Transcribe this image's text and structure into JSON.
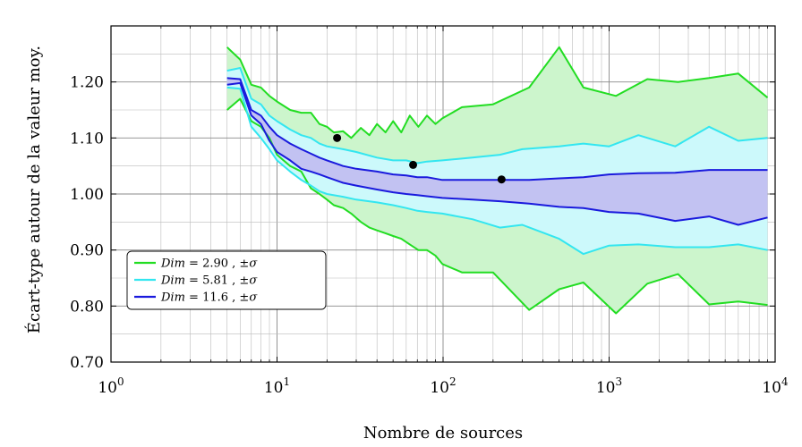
{
  "chart_data": {
    "type": "line",
    "title": "",
    "xlabel": "Nombre de sources",
    "ylabel": "Écart-type autour de la valeur moy.",
    "xscale": "log",
    "xlim": [
      1,
      10000
    ],
    "ylim": [
      0.7,
      1.3
    ],
    "grid": true,
    "legend_position": "bottom-left",
    "x_ticks": [
      1,
      10,
      100,
      1000,
      10000
    ],
    "x_tick_labels": [
      {
        "base": "10",
        "exp": "0"
      },
      {
        "base": "10",
        "exp": "1"
      },
      {
        "base": "10",
        "exp": "2"
      },
      {
        "base": "10",
        "exp": "3"
      },
      {
        "base": "10",
        "exp": "4"
      }
    ],
    "y_ticks": [
      0.7,
      0.8,
      0.9,
      1.0,
      1.1,
      1.2
    ],
    "y_tick_labels": [
      "0.70",
      "0.80",
      "0.90",
      "1.00",
      "1.10",
      "1.20"
    ],
    "series": [
      {
        "name": "Dim = 2.90 , ±σ",
        "legend": {
          "var": "Dim",
          "eq": " = 2.90 , ±",
          "sym": "σ"
        },
        "color": "#22dd22",
        "fill": "#ccf5cc",
        "x": [
          5,
          6,
          7,
          8,
          9,
          10,
          12,
          14,
          16,
          18,
          20,
          22,
          25,
          28,
          32,
          36,
          40,
          45,
          50,
          56,
          63,
          71,
          80,
          90,
          99,
          130,
          200,
          330,
          500,
          700,
          1100,
          1700,
          2600,
          4000,
          6000,
          9000
        ],
        "upper": [
          1.262,
          1.24,
          1.195,
          1.19,
          1.175,
          1.165,
          1.15,
          1.145,
          1.145,
          1.125,
          1.12,
          1.11,
          1.112,
          1.1,
          1.118,
          1.105,
          1.125,
          1.11,
          1.13,
          1.11,
          1.14,
          1.12,
          1.14,
          1.125,
          1.135,
          1.155,
          1.16,
          1.19,
          1.262,
          1.19,
          1.175,
          1.205,
          1.2,
          1.207,
          1.215,
          1.172
        ],
        "lower": [
          1.15,
          1.17,
          1.13,
          1.12,
          1.1,
          1.07,
          1.05,
          1.04,
          1.01,
          1.0,
          0.99,
          0.98,
          0.975,
          0.965,
          0.95,
          0.94,
          0.935,
          0.93,
          0.925,
          0.92,
          0.91,
          0.9,
          0.9,
          0.89,
          0.875,
          0.86,
          0.86,
          0.793,
          0.83,
          0.842,
          0.787,
          0.84,
          0.857,
          0.803,
          0.808,
          0.802
        ],
        "marker": {
          "x": 23,
          "y": 1.1
        }
      },
      {
        "name": "Dim = 5.81 , ±σ",
        "legend": {
          "var": "Dim",
          "eq": " = 5.81 , ±",
          "sym": "σ"
        },
        "color": "#33e6f0",
        "fill": "#ccf9fb",
        "x": [
          5,
          6,
          7,
          8,
          9,
          10,
          12,
          14,
          16,
          18,
          20,
          25,
          30,
          40,
          50,
          60,
          70,
          80,
          99,
          150,
          220,
          300,
          500,
          700,
          1000,
          1500,
          2500,
          4000,
          6000,
          9000
        ],
        "upper": [
          1.22,
          1.225,
          1.17,
          1.16,
          1.14,
          1.13,
          1.115,
          1.105,
          1.1,
          1.09,
          1.085,
          1.08,
          1.075,
          1.065,
          1.06,
          1.06,
          1.055,
          1.058,
          1.06,
          1.065,
          1.07,
          1.08,
          1.085,
          1.09,
          1.085,
          1.105,
          1.085,
          1.12,
          1.095,
          1.1
        ],
        "lower": [
          1.19,
          1.188,
          1.12,
          1.1,
          1.08,
          1.06,
          1.04,
          1.025,
          1.015,
          1.005,
          1.0,
          0.995,
          0.99,
          0.985,
          0.98,
          0.975,
          0.97,
          0.968,
          0.965,
          0.955,
          0.94,
          0.945,
          0.92,
          0.893,
          0.908,
          0.91,
          0.905,
          0.905,
          0.91,
          0.9
        ],
        "marker": {
          "x": 66,
          "y": 1.052
        }
      },
      {
        "name": "Dim = 11.6 , ±σ",
        "legend": {
          "var": "Dim",
          "eq": " = 11.6 , ±",
          "sym": "σ"
        },
        "color": "#1a1add",
        "fill": "#c2c2f2",
        "x": [
          5,
          6,
          7,
          8,
          9,
          10,
          12,
          14,
          16,
          18,
          20,
          25,
          30,
          40,
          50,
          60,
          70,
          80,
          99,
          150,
          220,
          330,
          500,
          700,
          1000,
          1500,
          2500,
          4000,
          6000,
          9000
        ],
        "upper": [
          1.207,
          1.205,
          1.15,
          1.14,
          1.12,
          1.105,
          1.09,
          1.08,
          1.072,
          1.065,
          1.06,
          1.05,
          1.045,
          1.04,
          1.035,
          1.033,
          1.03,
          1.03,
          1.025,
          1.025,
          1.025,
          1.025,
          1.028,
          1.03,
          1.035,
          1.037,
          1.038,
          1.043,
          1.043,
          1.043
        ],
        "lower": [
          1.195,
          1.198,
          1.14,
          1.125,
          1.095,
          1.075,
          1.06,
          1.045,
          1.04,
          1.035,
          1.03,
          1.02,
          1.015,
          1.008,
          1.003,
          1.0,
          0.998,
          0.996,
          0.993,
          0.99,
          0.987,
          0.983,
          0.977,
          0.975,
          0.968,
          0.965,
          0.952,
          0.96,
          0.945,
          0.958
        ],
        "marker": {
          "x": 225,
          "y": 1.026
        }
      }
    ]
  }
}
